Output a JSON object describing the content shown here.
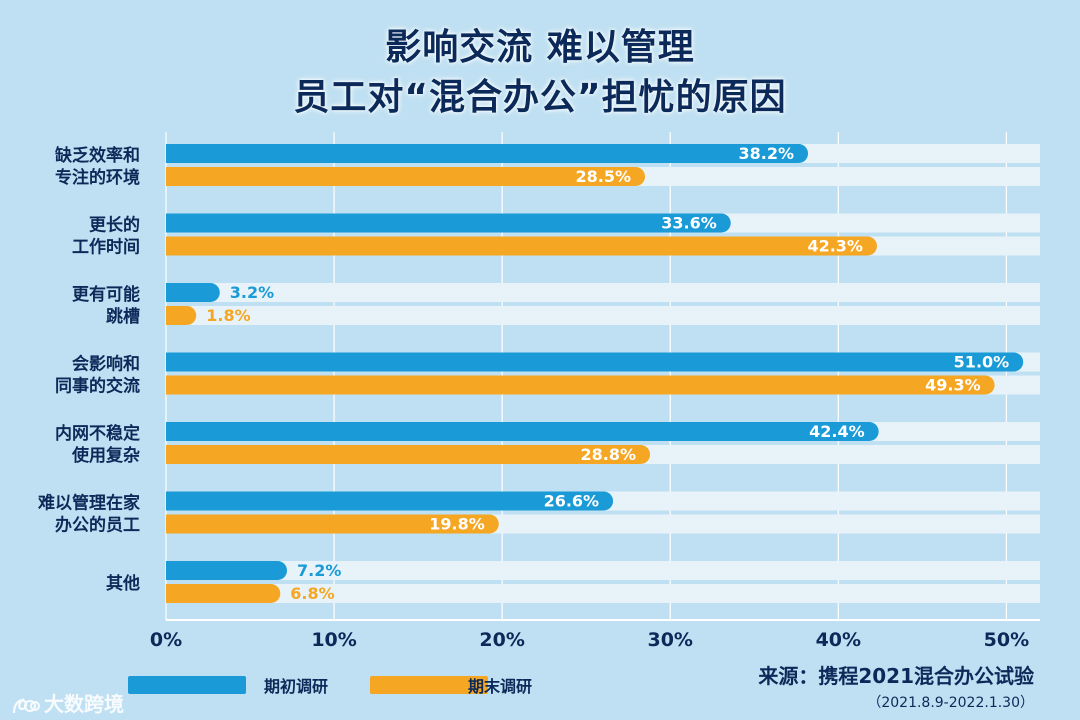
{
  "title": {
    "line1": "影响交流 难以管理",
    "line2": "员工对“混合办公”担忧的原因"
  },
  "chart_data": {
    "type": "bar",
    "orientation": "horizontal",
    "title": "影响交流 难以管理 员工对“混合办公”担忧的原因",
    "categories": [
      [
        "缺乏效率和",
        "专注的环境"
      ],
      [
        "更长的",
        "工作时间"
      ],
      [
        "更有可能",
        "跳槽"
      ],
      [
        "会影响和",
        "同事的交流"
      ],
      [
        "内网不稳定",
        "使用复杂"
      ],
      [
        "难以管理在家",
        "办公的员工"
      ],
      [
        "其他"
      ]
    ],
    "series": [
      {
        "name": "期初调研",
        "color": "#1a9ad6",
        "values": [
          38.2,
          33.6,
          3.2,
          51.0,
          42.4,
          26.6,
          7.2
        ],
        "labels": [
          "38.2%",
          "33.6%",
          "3.2%",
          "51.0%",
          "42.4%",
          "26.6%",
          "7.2%"
        ]
      },
      {
        "name": "期末调研",
        "color": "#f5a623",
        "values": [
          28.5,
          42.3,
          1.8,
          49.3,
          28.8,
          19.8,
          6.8
        ],
        "labels": [
          "28.5%",
          "42.3%",
          "1.8%",
          "49.3%",
          "28.8%",
          "19.8%",
          "6.8%"
        ]
      }
    ],
    "xlim": [
      0,
      52
    ],
    "xticks": [
      0,
      10,
      20,
      30,
      40,
      50
    ],
    "xtick_labels": [
      "0%",
      "10%",
      "20%",
      "30%",
      "40%",
      "50%"
    ],
    "grid": true,
    "legend": "bottom-left"
  },
  "legend": {
    "series1_label": "期初调研",
    "series2_label": "期末调研"
  },
  "source": {
    "text": "来源：携程2021混合办公试验",
    "period": "（2021.8.9-2022.1.30）"
  },
  "watermark": "大数跨境",
  "colors": {
    "background": "#bfe0f2",
    "track": "#e7f3f9",
    "series1": "#1a9ad6",
    "series2": "#f5a623",
    "text_dark": "#0b2a5a"
  }
}
